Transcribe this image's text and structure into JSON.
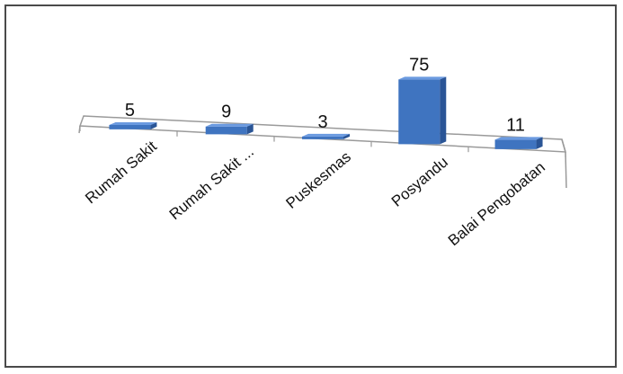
{
  "chart_data": {
    "type": "bar",
    "style": "3d-column",
    "categories": [
      "Rumah Sakit",
      "Rumah Sakit ...",
      "Puskesmas",
      "Posyandu",
      "Balai Pengobatan"
    ],
    "values": [
      5,
      9,
      3,
      75,
      11
    ],
    "data_labels": [
      "5",
      "9",
      "3",
      "75",
      "11"
    ],
    "title": "",
    "xlabel": "",
    "ylabel": "",
    "ylim": [
      0,
      75
    ],
    "grid": false,
    "legend": "none",
    "colors": {
      "bar_front": "#3f74c0",
      "bar_side": "#2a5596",
      "bar_top": "#6b9ae0",
      "floor_line": "#9a9a9a"
    }
  }
}
